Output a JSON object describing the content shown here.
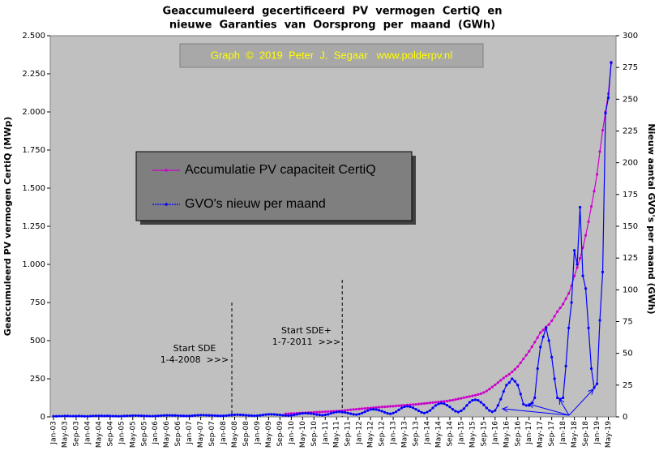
{
  "chart_data": {
    "type": "line",
    "title": [
      "Geaccumuleerd  gecertificeerd  PV  vermogen  CertiQ  en",
      "nieuwe  Garanties  van  Oorsprong  per  maand  (GWh)"
    ],
    "credit": "Graph  ©  2019  Peter  J.  Segaar   www.polderpv.nl",
    "ylabel": "Geaccumuleerd PV vermogen CertiQ (MWp)",
    "y2label": "Nieuw aantal GVO's per maand (GWh)",
    "annotations": [
      [
        "Start SDE",
        "1-4-2008  >>>"
      ],
      [
        "Start SDE+",
        "1-7-2011  >>>"
      ]
    ],
    "grid": false,
    "ylim": [
      0,
      2500
    ],
    "yticks": [
      0,
      250,
      500,
      750,
      {
        "value": 1000,
        "label": "1.000"
      },
      {
        "value": 1250,
        "label": "1.250"
      },
      {
        "value": 1500,
        "label": "1.500"
      },
      {
        "value": 1750,
        "label": "1.750"
      },
      {
        "value": 2000,
        "label": "2.000"
      },
      {
        "value": 2250,
        "label": "2.250"
      },
      {
        "value": 2500,
        "label": "2.500"
      }
    ],
    "y2lim": [
      0,
      300
    ],
    "y2ticks": [
      0,
      25,
      50,
      75,
      100,
      125,
      150,
      175,
      200,
      225,
      250,
      275,
      300
    ],
    "categories": [
      "Jan-03",
      null,
      null,
      null,
      "May-03",
      null,
      null,
      null,
      "Sep-03",
      null,
      null,
      null,
      "Jan-04",
      null,
      null,
      null,
      "May-04",
      null,
      null,
      null,
      "Sep-04",
      null,
      null,
      null,
      "Jan-05",
      null,
      null,
      null,
      "May-05",
      null,
      null,
      null,
      "Sep-05",
      null,
      null,
      null,
      "Jan-06",
      null,
      null,
      null,
      "May-06",
      null,
      null,
      null,
      "Sep-06",
      null,
      null,
      null,
      "Jan-07",
      null,
      null,
      null,
      "May-07",
      null,
      null,
      null,
      "Sep-07",
      null,
      null,
      null,
      "Jan-08",
      null,
      null,
      null,
      "May-08",
      null,
      null,
      null,
      "Sep-08",
      null,
      null,
      null,
      "Jan-09",
      null,
      null,
      null,
      "May-09",
      null,
      null,
      null,
      "Sep-09",
      null,
      null,
      null,
      "Jan-10",
      null,
      null,
      null,
      "May-10",
      null,
      null,
      null,
      "Sep-10",
      null,
      null,
      null,
      "Jan-11",
      null,
      null,
      null,
      "May-11",
      null,
      null,
      null,
      "Sep-11",
      null,
      null,
      null,
      "Jan-12",
      null,
      null,
      null,
      "May-12",
      null,
      null,
      null,
      "Sep-12",
      null,
      null,
      null,
      "Jan-13",
      null,
      null,
      null,
      "May-13",
      null,
      null,
      null,
      "Sep-13",
      null,
      null,
      null,
      "Jan-14",
      null,
      null,
      null,
      "May-14",
      null,
      null,
      null,
      "Sep-14",
      null,
      null,
      null,
      "Jan-15",
      null,
      null,
      null,
      "May-15",
      null,
      null,
      null,
      "Sep-15",
      null,
      null,
      null,
      "Jan-16",
      null,
      null,
      null,
      "May-16",
      null,
      null,
      null,
      "Sep-16",
      null,
      null,
      null,
      "Jan-17",
      null,
      null,
      null,
      "May-17",
      null,
      null,
      null,
      "Sep-17",
      null,
      null,
      null,
      "Jan-18",
      null,
      null,
      null,
      "May-18",
      null,
      null,
      null,
      "Sep-18",
      null,
      null,
      null,
      "Jan-19",
      null,
      null,
      null,
      "May-19",
      null
    ],
    "series": [
      {
        "name": "Accumulatie PV capaciteit CertiQ",
        "color": "#cc00cc",
        "values": [
          null,
          null,
          null,
          null,
          null,
          null,
          null,
          null,
          null,
          null,
          null,
          null,
          null,
          null,
          null,
          null,
          null,
          null,
          null,
          null,
          null,
          null,
          null,
          null,
          null,
          null,
          null,
          null,
          null,
          null,
          null,
          null,
          null,
          null,
          null,
          null,
          null,
          null,
          null,
          null,
          null,
          null,
          null,
          null,
          null,
          null,
          null,
          null,
          null,
          null,
          null,
          null,
          null,
          null,
          null,
          null,
          null,
          null,
          null,
          null,
          null,
          null,
          null,
          null,
          null,
          null,
          null,
          null,
          null,
          null,
          null,
          null,
          null,
          null,
          null,
          null,
          null,
          null,
          null,
          null,
          null,
          null,
          20,
          21,
          22,
          23,
          24,
          25,
          26,
          27,
          28,
          29,
          30,
          31,
          32,
          33,
          34,
          35,
          36,
          37,
          38,
          39,
          41,
          43,
          45,
          47,
          49,
          50,
          52,
          54,
          55,
          57,
          58,
          60,
          61,
          63,
          65,
          66,
          67,
          69,
          70,
          72,
          73,
          75,
          76,
          78,
          79,
          81,
          82,
          84,
          86,
          88,
          90,
          92,
          94,
          96,
          98,
          100,
          102,
          104,
          107,
          110,
          114,
          118,
          122,
          126,
          130,
          134,
          138,
          142,
          147,
          152,
          160,
          170,
          182,
          196,
          210,
          225,
          240,
          255,
          268,
          280,
          295,
          312,
          330,
          355,
          380,
          405,
          430,
          460,
          490,
          520,
          553,
          570,
          590,
          606,
          630,
          660,
          690,
          715,
          740,
          775,
          810,
          860,
          925,
          980,
          1040,
          1110,
          1190,
          1280,
          1380,
          1480,
          1590,
          1740,
          1880,
          2000,
          2120,
          2320
        ]
      },
      {
        "name": "GVO's nieuw per maand",
        "color": "#0000ff",
        "axis": "y2",
        "values": [
          0.5,
          0.5,
          0.6,
          0.6,
          0.7,
          0.7,
          0.6,
          0.6,
          0.6,
          0.7,
          0.6,
          0.5,
          0.5,
          0.6,
          0.7,
          0.8,
          0.8,
          0.8,
          0.7,
          0.8,
          0.7,
          0.6,
          0.6,
          0.5,
          0.6,
          0.7,
          0.8,
          0.9,
          1.0,
          1.0,
          1.0,
          0.9,
          0.8,
          0.7,
          0.6,
          0.6,
          0.7,
          0.8,
          1.0,
          1.1,
          1.2,
          1.2,
          1.1,
          1.1,
          1.0,
          0.9,
          0.8,
          0.7,
          0.8,
          0.9,
          1.1,
          1.3,
          1.4,
          1.4,
          1.3,
          1.2,
          1.1,
          1.0,
          0.9,
          0.8,
          0.9,
          1.0,
          1.3,
          1.5,
          1.6,
          1.7,
          1.6,
          1.5,
          1.3,
          1.1,
          1.0,
          0.9,
          1.0,
          1.2,
          1.5,
          1.8,
          2.0,
          2.0,
          1.9,
          1.7,
          1.5,
          1.3,
          1.1,
          1.0,
          1.2,
          1.5,
          2.0,
          2.5,
          2.8,
          2.9,
          2.8,
          2.6,
          2.2,
          1.8,
          1.5,
          1.3,
          1.6,
          2.0,
          2.8,
          3.4,
          3.8,
          4.0,
          3.8,
          3.5,
          3.0,
          2.5,
          2.0,
          1.8,
          2.2,
          3.0,
          4.0,
          5.0,
          5.8,
          6.0,
          5.8,
          5.2,
          4.5,
          3.6,
          2.8,
          2.4,
          3.0,
          4.0,
          5.5,
          7.0,
          8.0,
          8.4,
          8.0,
          7.2,
          6.0,
          4.8,
          3.6,
          3.0,
          3.8,
          5.0,
          7.0,
          9.0,
          10.2,
          10.8,
          10.4,
          9.2,
          7.8,
          6.0,
          4.5,
          3.8,
          4.8,
          6.5,
          9.0,
          11.5,
          13.0,
          13.5,
          13.0,
          11.5,
          9.5,
          7.0,
          5.0,
          4.0,
          5,
          9,
          14,
          20,
          25,
          27,
          30,
          28,
          25,
          18,
          10,
          9,
          9,
          11,
          15,
          38,
          55,
          63,
          70,
          60,
          47,
          30,
          15,
          14,
          15,
          40,
          70,
          90,
          131,
          120,
          165,
          111,
          101,
          70,
          38,
          23,
          26,
          76,
          114,
          239,
          251,
          279
        ]
      }
    ]
  }
}
